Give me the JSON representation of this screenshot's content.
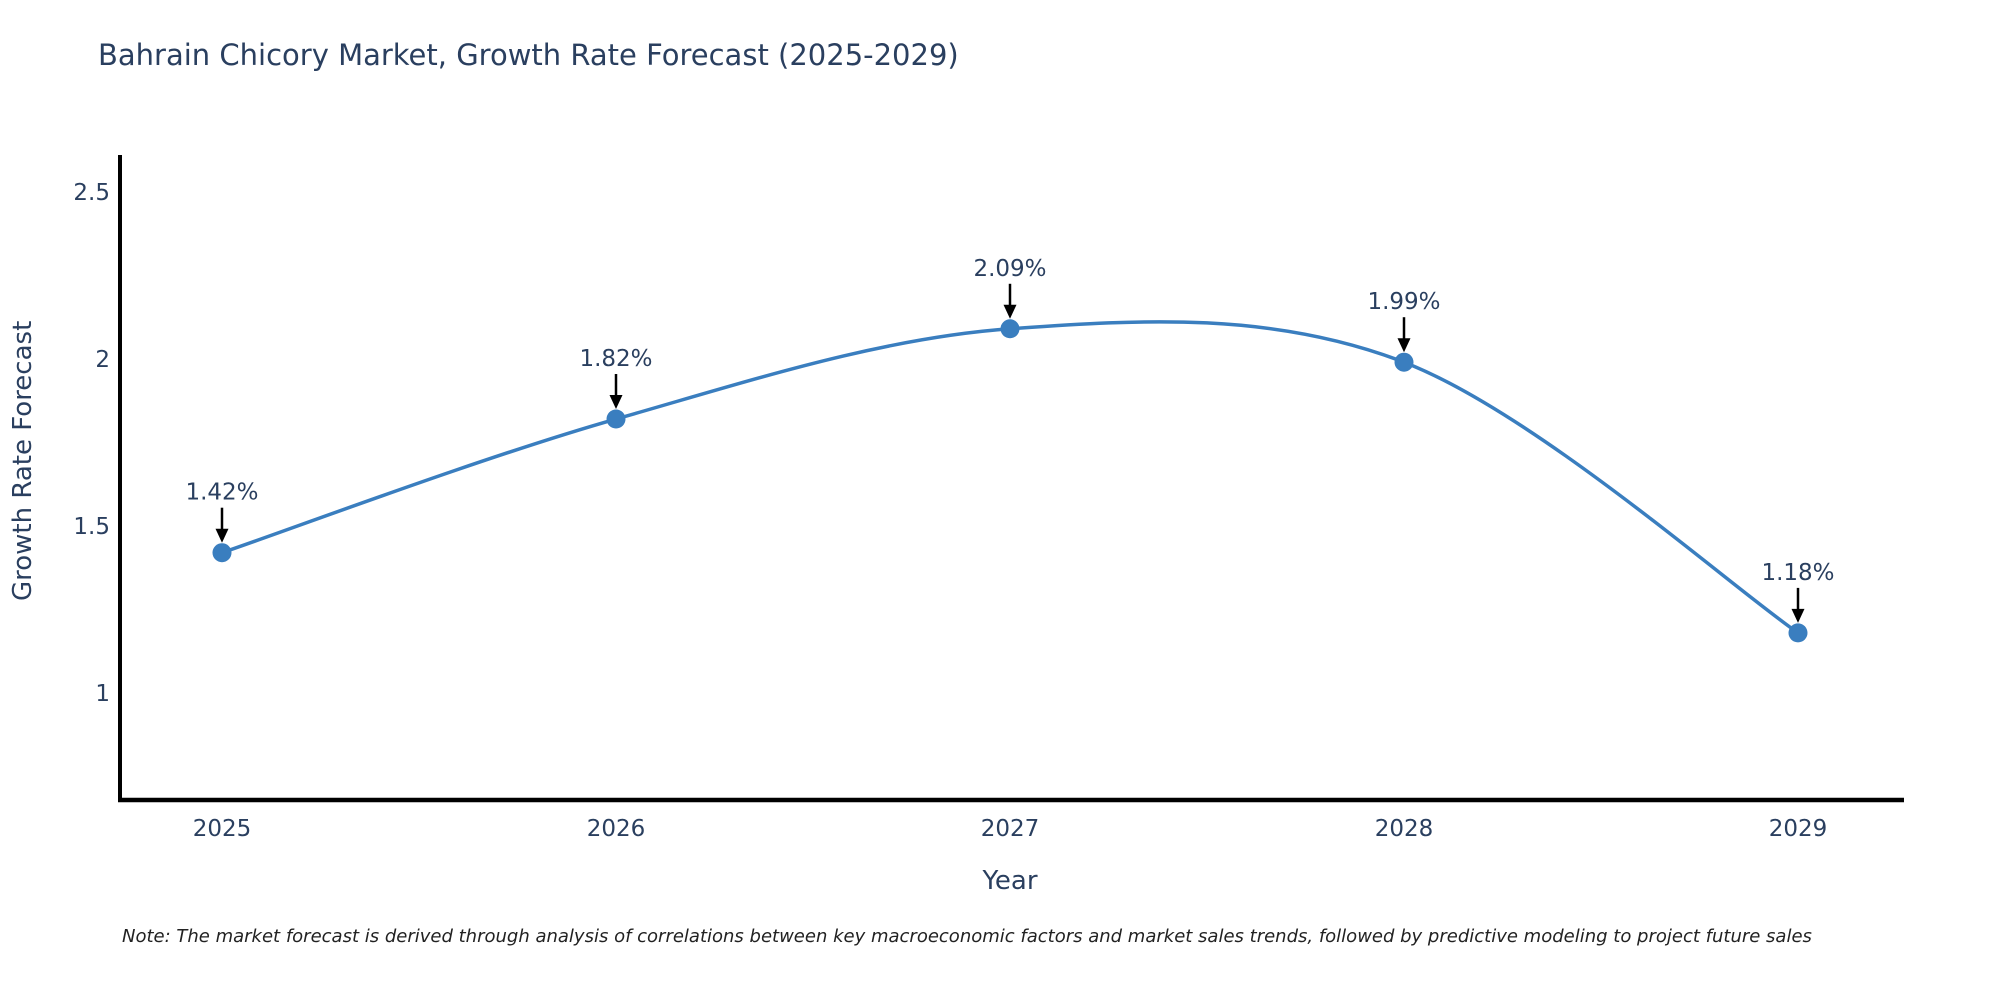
{
  "chart_data": {
    "type": "line",
    "title": "Bahrain Chicory Market, Growth Rate Forecast (2025-2029)",
    "xlabel": "Year",
    "ylabel": "Growth Rate Forecast",
    "categories": [
      "2025",
      "2026",
      "2027",
      "2028",
      "2029"
    ],
    "values": [
      1.42,
      1.82,
      2.09,
      1.99,
      1.18
    ],
    "point_labels": [
      "1.42%",
      "1.82%",
      "2.09%",
      "1.99%",
      "1.18%"
    ],
    "yticks": [
      2.5,
      2,
      1.5,
      1
    ],
    "ylim": [
      0.68,
      2.61
    ],
    "grid": false,
    "legend": "none",
    "line_shape": "spline",
    "colors": {
      "line": "#3a7ebf",
      "marker": "#3a7ebf",
      "axis": "#000000",
      "text": "#2a3f5f",
      "arrow": "#000000"
    }
  },
  "note": "Note: The market forecast is derived through analysis of correlations between key macroeconomic factors and market sales trends, followed by predictive modeling to project future sales"
}
